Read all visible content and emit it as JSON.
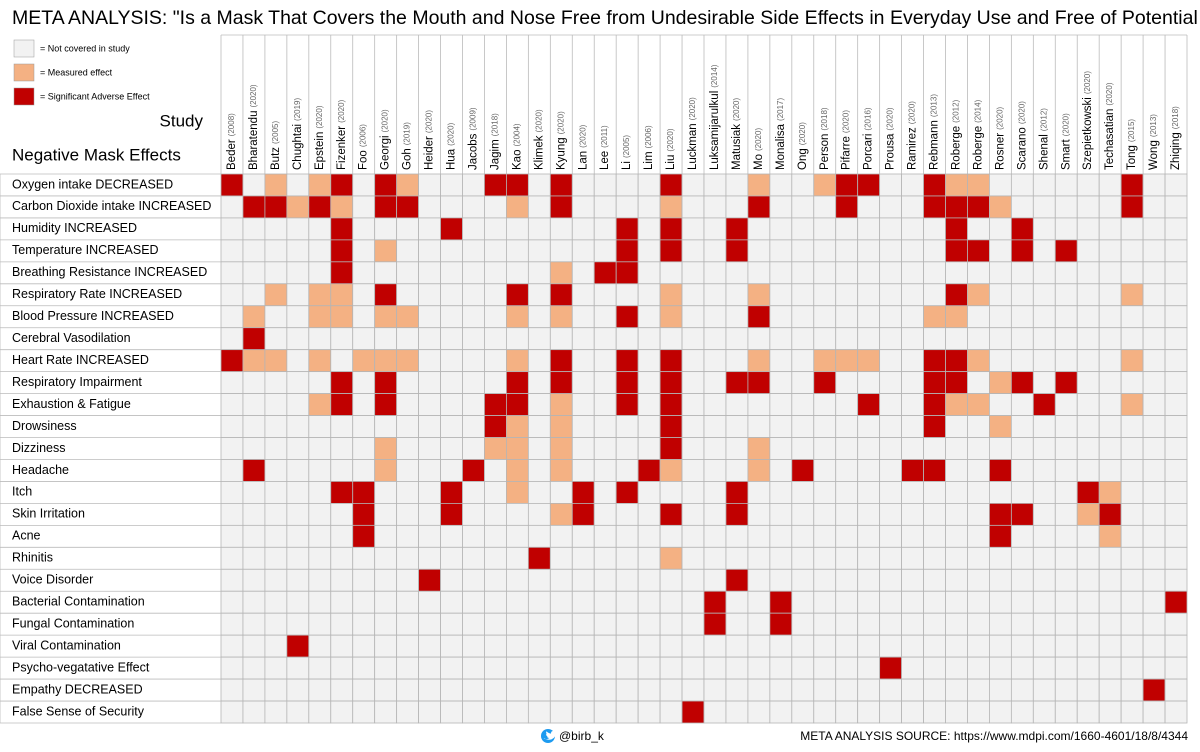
{
  "title": "META ANALYSIS: \"Is a Mask That Covers the Mouth and Nose Free from Undesirable Side Effects in Everyday Use and Free of Potential Hazards?\"",
  "legend": [
    {
      "code": 0,
      "label": "= Not covered in study",
      "color": "#f2f2f2"
    },
    {
      "code": 1,
      "label": "= Measured effect",
      "color": "#f4b183"
    },
    {
      "code": 2,
      "label": "= Significant Adverse Effect",
      "color": "#c00000"
    }
  ],
  "column_header": "Study",
  "row_header": "Negative Mask Effects",
  "studies": [
    {
      "name": "Beder",
      "year": "(2008)"
    },
    {
      "name": "Bharatendu",
      "year": "(2020)"
    },
    {
      "name": "Butz",
      "year": "(2005)"
    },
    {
      "name": "Chughtai",
      "year": "(2019)"
    },
    {
      "name": "Epstein",
      "year": "(2020)"
    },
    {
      "name": "Fizenker",
      "year": "(2020)"
    },
    {
      "name": "Foo",
      "year": "(2006)"
    },
    {
      "name": "Georgi",
      "year": "(2020)"
    },
    {
      "name": "Goh",
      "year": "(2019)"
    },
    {
      "name": "Heider",
      "year": "(2020)"
    },
    {
      "name": "Hua",
      "year": "(2020)"
    },
    {
      "name": "Jacobs",
      "year": "(2009)"
    },
    {
      "name": "Jagim",
      "year": "(2018)"
    },
    {
      "name": "Kao",
      "year": "(2004)"
    },
    {
      "name": "Klimek",
      "year": "(2020)"
    },
    {
      "name": "Kyung",
      "year": "(2020)"
    },
    {
      "name": "Lan",
      "year": "(2020)"
    },
    {
      "name": "Lee",
      "year": "(2011)"
    },
    {
      "name": "Li",
      "year": "(2005)"
    },
    {
      "name": "Lim",
      "year": "(2006)"
    },
    {
      "name": "Liu",
      "year": "(2020)"
    },
    {
      "name": "Luckman",
      "year": "(2020)"
    },
    {
      "name": "Luksamijarulkul",
      "year": "(2014)"
    },
    {
      "name": "Matusiak",
      "year": "(2020)"
    },
    {
      "name": "Mo",
      "year": "(2020)"
    },
    {
      "name": "Monalisa",
      "year": "(2017)"
    },
    {
      "name": "Ong",
      "year": "(2020)"
    },
    {
      "name": "Person",
      "year": "(2018)"
    },
    {
      "name": "Pifarre",
      "year": "(2020)"
    },
    {
      "name": "Porcari",
      "year": "(2016)"
    },
    {
      "name": "Prousa",
      "year": "(2020)"
    },
    {
      "name": "Ramirez",
      "year": "(2020)"
    },
    {
      "name": "Rebmann",
      "year": "(2013)"
    },
    {
      "name": "Roberge",
      "year": "(2012)"
    },
    {
      "name": "Roberge",
      "year": "(2014)"
    },
    {
      "name": "Rosner",
      "year": "(2020)"
    },
    {
      "name": "Scarano",
      "year": "(2020)"
    },
    {
      "name": "Shenal",
      "year": "(2012)"
    },
    {
      "name": "Smart",
      "year": "(2020)"
    },
    {
      "name": "Szepietkowski",
      "year": "(2020)"
    },
    {
      "name": "Techasatian",
      "year": "(2020)"
    },
    {
      "name": "Tong",
      "year": "(2015)"
    },
    {
      "name": "Wong",
      "year": "(2013)"
    },
    {
      "name": "Zhiqing",
      "year": "(2018)"
    }
  ],
  "rows": [
    {
      "label": "Oxygen intake DECREASED",
      "cells": [
        2,
        0,
        1,
        0,
        1,
        2,
        0,
        2,
        1,
        0,
        0,
        0,
        2,
        2,
        0,
        2,
        0,
        0,
        0,
        0,
        2,
        0,
        0,
        0,
        1,
        0,
        0,
        1,
        2,
        2,
        0,
        0,
        2,
        1,
        1,
        0,
        0,
        0,
        0,
        0,
        0,
        2,
        0,
        0
      ]
    },
    {
      "label": "Carbon Dioxide intake INCREASED",
      "cells": [
        0,
        2,
        2,
        1,
        2,
        1,
        0,
        2,
        2,
        0,
        0,
        0,
        0,
        1,
        0,
        2,
        0,
        0,
        0,
        0,
        1,
        0,
        0,
        0,
        2,
        0,
        0,
        0,
        2,
        0,
        0,
        0,
        2,
        2,
        2,
        1,
        0,
        0,
        0,
        0,
        0,
        2,
        0,
        0
      ]
    },
    {
      "label": "Humidity INCREASED",
      "cells": [
        0,
        0,
        0,
        0,
        0,
        2,
        0,
        0,
        0,
        0,
        2,
        0,
        0,
        0,
        0,
        0,
        0,
        0,
        2,
        0,
        2,
        0,
        0,
        2,
        0,
        0,
        0,
        0,
        0,
        0,
        0,
        0,
        0,
        2,
        0,
        0,
        2,
        0,
        0,
        0,
        0,
        0,
        0,
        0
      ]
    },
    {
      "label": "Temperature INCREASED",
      "cells": [
        0,
        0,
        0,
        0,
        0,
        2,
        0,
        1,
        0,
        0,
        0,
        0,
        0,
        0,
        0,
        0,
        0,
        0,
        2,
        0,
        2,
        0,
        0,
        2,
        0,
        0,
        0,
        0,
        0,
        0,
        0,
        0,
        0,
        2,
        2,
        0,
        2,
        0,
        2,
        0,
        0,
        0,
        0,
        0
      ]
    },
    {
      "label": "Breathing Resistance INCREASED",
      "cells": [
        0,
        0,
        0,
        0,
        0,
        2,
        0,
        0,
        0,
        0,
        0,
        0,
        0,
        0,
        0,
        1,
        0,
        2,
        2,
        0,
        0,
        0,
        0,
        0,
        0,
        0,
        0,
        0,
        0,
        0,
        0,
        0,
        0,
        0,
        0,
        0,
        0,
        0,
        0,
        0,
        0,
        0,
        0,
        0
      ]
    },
    {
      "label": "Respiratory Rate INCREASED",
      "cells": [
        0,
        0,
        1,
        0,
        1,
        1,
        0,
        2,
        0,
        0,
        0,
        0,
        0,
        2,
        0,
        2,
        0,
        0,
        0,
        0,
        1,
        0,
        0,
        0,
        1,
        0,
        0,
        0,
        0,
        0,
        0,
        0,
        0,
        2,
        1,
        0,
        0,
        0,
        0,
        0,
        0,
        1,
        0,
        0
      ]
    },
    {
      "label": "Blood Pressure INCREASED",
      "cells": [
        0,
        1,
        0,
        0,
        1,
        1,
        0,
        1,
        1,
        0,
        0,
        0,
        0,
        1,
        0,
        1,
        0,
        0,
        2,
        0,
        1,
        0,
        0,
        0,
        2,
        0,
        0,
        0,
        0,
        0,
        0,
        0,
        1,
        1,
        0,
        0,
        0,
        0,
        0,
        0,
        0,
        0,
        0,
        0
      ]
    },
    {
      "label": "Cerebral Vasodilation",
      "cells": [
        0,
        2,
        0,
        0,
        0,
        0,
        0,
        0,
        0,
        0,
        0,
        0,
        0,
        0,
        0,
        0,
        0,
        0,
        0,
        0,
        0,
        0,
        0,
        0,
        0,
        0,
        0,
        0,
        0,
        0,
        0,
        0,
        0,
        0,
        0,
        0,
        0,
        0,
        0,
        0,
        0,
        0,
        0,
        0
      ]
    },
    {
      "label": "Heart Rate INCREASED",
      "cells": [
        2,
        1,
        1,
        0,
        1,
        0,
        1,
        1,
        1,
        0,
        0,
        0,
        0,
        1,
        0,
        2,
        0,
        0,
        2,
        0,
        2,
        0,
        0,
        0,
        1,
        0,
        0,
        1,
        1,
        1,
        0,
        0,
        2,
        2,
        1,
        0,
        0,
        0,
        0,
        0,
        0,
        1,
        0,
        0
      ]
    },
    {
      "label": "Respiratory Impairment",
      "cells": [
        0,
        0,
        0,
        0,
        0,
        2,
        0,
        2,
        0,
        0,
        0,
        0,
        0,
        2,
        0,
        2,
        0,
        0,
        2,
        0,
        2,
        0,
        0,
        2,
        2,
        0,
        0,
        2,
        0,
        0,
        0,
        0,
        2,
        2,
        0,
        1,
        2,
        0,
        2,
        0,
        0,
        0,
        0,
        0
      ]
    },
    {
      "label": "Exhaustion & Fatigue",
      "cells": [
        0,
        0,
        0,
        0,
        1,
        2,
        0,
        2,
        0,
        0,
        0,
        0,
        2,
        2,
        0,
        1,
        0,
        0,
        2,
        0,
        2,
        0,
        0,
        0,
        0,
        0,
        0,
        0,
        0,
        2,
        0,
        0,
        2,
        1,
        1,
        0,
        0,
        2,
        0,
        0,
        0,
        1,
        0,
        0
      ]
    },
    {
      "label": "Drowsiness",
      "cells": [
        0,
        0,
        0,
        0,
        0,
        0,
        0,
        0,
        0,
        0,
        0,
        0,
        2,
        1,
        0,
        1,
        0,
        0,
        0,
        0,
        2,
        0,
        0,
        0,
        0,
        0,
        0,
        0,
        0,
        0,
        0,
        0,
        2,
        0,
        0,
        1,
        0,
        0,
        0,
        0,
        0,
        0,
        0,
        0
      ]
    },
    {
      "label": "Dizziness",
      "cells": [
        0,
        0,
        0,
        0,
        0,
        0,
        0,
        1,
        0,
        0,
        0,
        0,
        1,
        1,
        0,
        1,
        0,
        0,
        0,
        0,
        2,
        0,
        0,
        0,
        1,
        0,
        0,
        0,
        0,
        0,
        0,
        0,
        0,
        0,
        0,
        0,
        0,
        0,
        0,
        0,
        0,
        0,
        0,
        0
      ]
    },
    {
      "label": "Headache",
      "cells": [
        0,
        2,
        0,
        0,
        0,
        0,
        0,
        1,
        0,
        0,
        0,
        2,
        0,
        1,
        0,
        1,
        0,
        0,
        0,
        2,
        1,
        0,
        0,
        0,
        1,
        0,
        2,
        0,
        0,
        0,
        0,
        2,
        2,
        0,
        0,
        2,
        0,
        0,
        0,
        0,
        0,
        0,
        0,
        0
      ]
    },
    {
      "label": "Itch",
      "cells": [
        0,
        0,
        0,
        0,
        0,
        2,
        2,
        0,
        0,
        0,
        2,
        0,
        0,
        1,
        0,
        0,
        2,
        0,
        2,
        0,
        0,
        0,
        0,
        2,
        0,
        0,
        0,
        0,
        0,
        0,
        0,
        0,
        0,
        0,
        0,
        0,
        0,
        0,
        0,
        2,
        1,
        0,
        0,
        0
      ]
    },
    {
      "label": "Skin Irritation",
      "cells": [
        0,
        0,
        0,
        0,
        0,
        0,
        2,
        0,
        0,
        0,
        2,
        0,
        0,
        0,
        0,
        1,
        2,
        0,
        0,
        0,
        2,
        0,
        0,
        2,
        0,
        0,
        0,
        0,
        0,
        0,
        0,
        0,
        0,
        0,
        0,
        2,
        2,
        0,
        0,
        1,
        2,
        0,
        0,
        0
      ]
    },
    {
      "label": "Acne",
      "cells": [
        0,
        0,
        0,
        0,
        0,
        0,
        2,
        0,
        0,
        0,
        0,
        0,
        0,
        0,
        0,
        0,
        0,
        0,
        0,
        0,
        0,
        0,
        0,
        0,
        0,
        0,
        0,
        0,
        0,
        0,
        0,
        0,
        0,
        0,
        0,
        2,
        0,
        0,
        0,
        0,
        1,
        0,
        0,
        0
      ]
    },
    {
      "label": "Rhinitis",
      "cells": [
        0,
        0,
        0,
        0,
        0,
        0,
        0,
        0,
        0,
        0,
        0,
        0,
        0,
        0,
        2,
        0,
        0,
        0,
        0,
        0,
        1,
        0,
        0,
        0,
        0,
        0,
        0,
        0,
        0,
        0,
        0,
        0,
        0,
        0,
        0,
        0,
        0,
        0,
        0,
        0,
        0,
        0,
        0,
        0
      ]
    },
    {
      "label": "Voice Disorder",
      "cells": [
        0,
        0,
        0,
        0,
        0,
        0,
        0,
        0,
        0,
        2,
        0,
        0,
        0,
        0,
        0,
        0,
        0,
        0,
        0,
        0,
        0,
        0,
        0,
        2,
        0,
        0,
        0,
        0,
        0,
        0,
        0,
        0,
        0,
        0,
        0,
        0,
        0,
        0,
        0,
        0,
        0,
        0,
        0,
        0
      ]
    },
    {
      "label": "Bacterial Contamination",
      "cells": [
        0,
        0,
        0,
        0,
        0,
        0,
        0,
        0,
        0,
        0,
        0,
        0,
        0,
        0,
        0,
        0,
        0,
        0,
        0,
        0,
        0,
        0,
        2,
        0,
        0,
        2,
        0,
        0,
        0,
        0,
        0,
        0,
        0,
        0,
        0,
        0,
        0,
        0,
        0,
        0,
        0,
        0,
        0,
        2
      ]
    },
    {
      "label": "Fungal Contamination",
      "cells": [
        0,
        0,
        0,
        0,
        0,
        0,
        0,
        0,
        0,
        0,
        0,
        0,
        0,
        0,
        0,
        0,
        0,
        0,
        0,
        0,
        0,
        0,
        2,
        0,
        0,
        2,
        0,
        0,
        0,
        0,
        0,
        0,
        0,
        0,
        0,
        0,
        0,
        0,
        0,
        0,
        0,
        0,
        0,
        0
      ]
    },
    {
      "label": "Viral Contamination",
      "cells": [
        0,
        0,
        0,
        2,
        0,
        0,
        0,
        0,
        0,
        0,
        0,
        0,
        0,
        0,
        0,
        0,
        0,
        0,
        0,
        0,
        0,
        0,
        0,
        0,
        0,
        0,
        0,
        0,
        0,
        0,
        0,
        0,
        0,
        0,
        0,
        0,
        0,
        0,
        0,
        0,
        0,
        0,
        0,
        0
      ]
    },
    {
      "label": "Psycho-vegatative Effect",
      "cells": [
        0,
        0,
        0,
        0,
        0,
        0,
        0,
        0,
        0,
        0,
        0,
        0,
        0,
        0,
        0,
        0,
        0,
        0,
        0,
        0,
        0,
        0,
        0,
        0,
        0,
        0,
        0,
        0,
        0,
        0,
        2,
        0,
        0,
        0,
        0,
        0,
        0,
        0,
        0,
        0,
        0,
        0,
        0,
        0
      ]
    },
    {
      "label": "Empathy DECREASED",
      "cells": [
        0,
        0,
        0,
        0,
        0,
        0,
        0,
        0,
        0,
        0,
        0,
        0,
        0,
        0,
        0,
        0,
        0,
        0,
        0,
        0,
        0,
        0,
        0,
        0,
        0,
        0,
        0,
        0,
        0,
        0,
        0,
        0,
        0,
        0,
        0,
        0,
        0,
        0,
        0,
        0,
        0,
        0,
        2,
        0
      ]
    },
    {
      "label": "False Sense of Security",
      "cells": [
        0,
        0,
        0,
        0,
        0,
        0,
        0,
        0,
        0,
        0,
        0,
        0,
        0,
        0,
        0,
        0,
        0,
        0,
        0,
        0,
        0,
        2,
        0,
        0,
        0,
        0,
        0,
        0,
        0,
        0,
        0,
        0,
        0,
        0,
        0,
        0,
        0,
        0,
        0,
        0,
        0,
        0,
        0,
        0
      ]
    }
  ],
  "footer": {
    "handle": "@birb_k",
    "source": "META ANALYSIS SOURCE: https://www.mdpi.com/1660-4601/18/8/4344"
  }
}
